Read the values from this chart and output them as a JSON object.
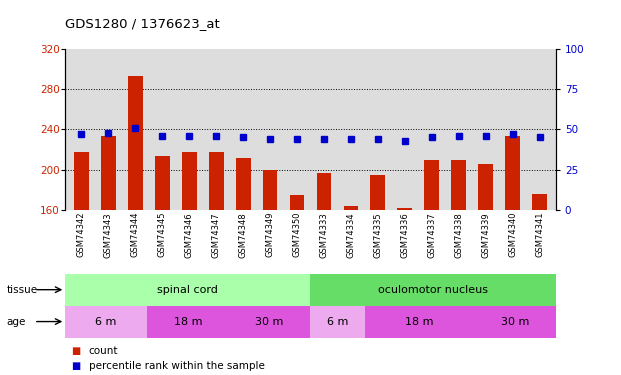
{
  "title": "GDS1280 / 1376623_at",
  "samples": [
    "GSM74342",
    "GSM74343",
    "GSM74344",
    "GSM74345",
    "GSM74346",
    "GSM74347",
    "GSM74348",
    "GSM74349",
    "GSM74350",
    "GSM74333",
    "GSM74334",
    "GSM74335",
    "GSM74336",
    "GSM74337",
    "GSM74338",
    "GSM74339",
    "GSM74340",
    "GSM74341"
  ],
  "bar_values": [
    218,
    233,
    293,
    214,
    218,
    218,
    212,
    200,
    175,
    197,
    164,
    195,
    162,
    210,
    210,
    206,
    233,
    176
  ],
  "blue_values": [
    47,
    48,
    51,
    46,
    46,
    46,
    45,
    44,
    44,
    44,
    44,
    44,
    43,
    45,
    46,
    46,
    47,
    45
  ],
  "ylim_left": [
    160,
    320
  ],
  "ylim_right": [
    0,
    100
  ],
  "yticks_left": [
    160,
    200,
    240,
    280,
    320
  ],
  "yticks_right": [
    0,
    25,
    50,
    75,
    100
  ],
  "bar_color": "#cc2200",
  "blue_color": "#0000cc",
  "tissue_groups": [
    {
      "label": "spinal cord",
      "start": 0,
      "end": 9,
      "color": "#aaffaa"
    },
    {
      "label": "oculomotor nucleus",
      "start": 9,
      "end": 18,
      "color": "#66dd66"
    }
  ],
  "age_groups": [
    {
      "label": "6 m",
      "start": 0,
      "end": 3,
      "color": "#eeaaee"
    },
    {
      "label": "18 m",
      "start": 3,
      "end": 6,
      "color": "#dd55dd"
    },
    {
      "label": "30 m",
      "start": 6,
      "end": 9,
      "color": "#dd55dd"
    },
    {
      "label": "6 m",
      "start": 9,
      "end": 11,
      "color": "#eeaaee"
    },
    {
      "label": "18 m",
      "start": 11,
      "end": 15,
      "color": "#dd55dd"
    },
    {
      "label": "30 m",
      "start": 15,
      "end": 18,
      "color": "#dd55dd"
    }
  ],
  "tissue_label": "tissue",
  "age_label": "age",
  "legend_count": "count",
  "legend_pct": "percentile rank within the sample",
  "bg_color": "#ffffff",
  "plot_bg": "#dddddd",
  "grid_yticks": [
    200,
    240,
    280
  ]
}
